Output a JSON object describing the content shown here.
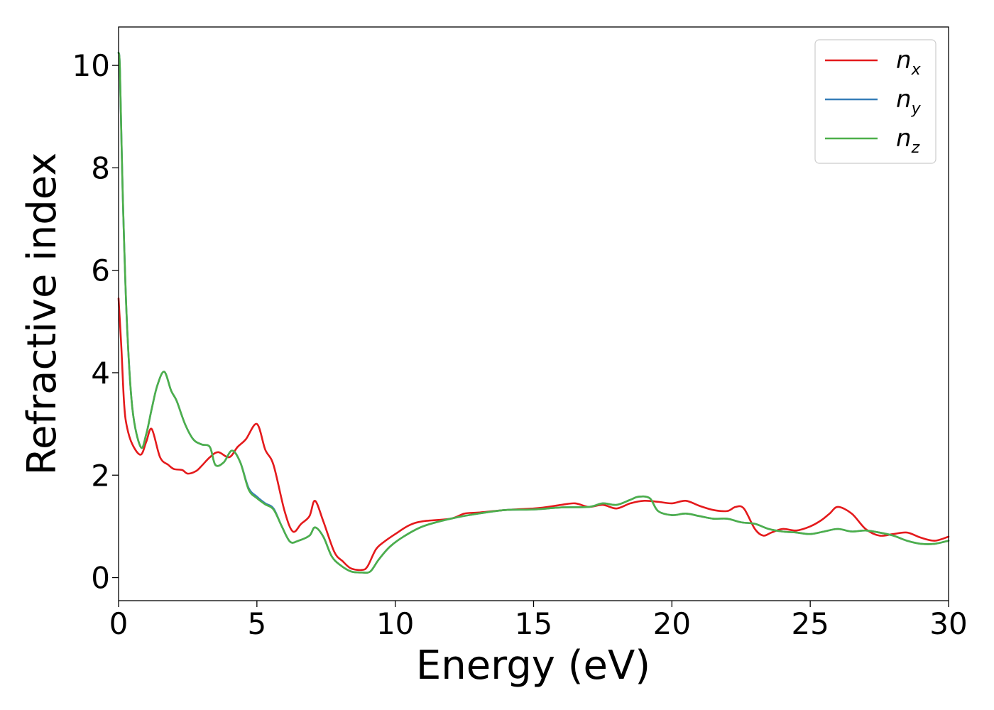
{
  "chart_data": {
    "type": "line",
    "title": "",
    "xlabel": "Energy (eV)",
    "ylabel": "Refractive index",
    "xlim": [
      0,
      30
    ],
    "ylim": [
      -0.45,
      10.75
    ],
    "xticks": [
      0,
      5,
      10,
      15,
      20,
      25,
      30
    ],
    "yticks": [
      0,
      2,
      4,
      6,
      8,
      10
    ],
    "xtick_labels": [
      "0",
      "5",
      "10",
      "15",
      "20",
      "25",
      "30"
    ],
    "ytick_labels": [
      "0",
      "2",
      "4",
      "6",
      "8",
      "10"
    ],
    "grid": false,
    "legend_position": "top-right",
    "series": [
      {
        "name": "n",
        "name_sub": "x",
        "color": "#e41a1c",
        "x": [
          0.0,
          0.1,
          0.2,
          0.3,
          0.5,
          0.8,
          1.0,
          1.2,
          1.5,
          1.8,
          2.0,
          2.3,
          2.5,
          2.8,
          3.0,
          3.3,
          3.6,
          4.0,
          4.3,
          4.6,
          5.0,
          5.3,
          5.6,
          6.0,
          6.3,
          6.6,
          6.9,
          7.1,
          7.4,
          7.8,
          8.1,
          8.4,
          8.8,
          9.0,
          9.3,
          9.6,
          10.0,
          10.5,
          11.0,
          12.0,
          12.5,
          13.0,
          14.0,
          15.0,
          15.5,
          16.0,
          16.5,
          17.0,
          17.5,
          18.0,
          18.5,
          19.0,
          19.5,
          20.0,
          20.5,
          21.0,
          21.5,
          22.0,
          22.3,
          22.6,
          23.0,
          23.3,
          23.6,
          24.0,
          24.5,
          25.0,
          25.4,
          25.7,
          26.0,
          26.5,
          27.0,
          27.5,
          28.0,
          28.5,
          29.0,
          29.5,
          30.0
        ],
        "y": [
          5.45,
          4.5,
          3.4,
          2.95,
          2.6,
          2.4,
          2.65,
          2.9,
          2.35,
          2.2,
          2.12,
          2.1,
          2.03,
          2.08,
          2.18,
          2.35,
          2.45,
          2.35,
          2.55,
          2.7,
          3.0,
          2.5,
          2.2,
          1.3,
          0.9,
          1.05,
          1.2,
          1.5,
          1.1,
          0.5,
          0.32,
          0.18,
          0.15,
          0.22,
          0.55,
          0.7,
          0.85,
          1.02,
          1.1,
          1.15,
          1.25,
          1.27,
          1.32,
          1.35,
          1.38,
          1.42,
          1.45,
          1.38,
          1.42,
          1.35,
          1.45,
          1.5,
          1.48,
          1.45,
          1.5,
          1.4,
          1.32,
          1.3,
          1.38,
          1.35,
          0.95,
          0.82,
          0.88,
          0.95,
          0.92,
          1.0,
          1.12,
          1.25,
          1.38,
          1.25,
          0.95,
          0.82,
          0.85,
          0.88,
          0.78,
          0.72,
          0.8
        ]
      },
      {
        "name": "n",
        "name_sub": "y",
        "color": "#377eb8",
        "x": [
          0.0,
          0.05,
          0.15,
          0.3,
          0.5,
          0.8,
          1.0,
          1.2,
          1.4,
          1.65,
          1.9,
          2.1,
          2.4,
          2.7,
          3.0,
          3.3,
          3.5,
          3.8,
          4.1,
          4.4,
          4.7,
          5.0,
          5.3,
          5.6,
          5.9,
          6.2,
          6.5,
          6.9,
          7.1,
          7.4,
          7.7,
          8.0,
          8.4,
          8.8,
          9.1,
          9.4,
          9.8,
          10.3,
          11.0,
          12.0,
          13.0,
          14.0,
          15.0,
          16.0,
          17.0,
          17.5,
          18.0,
          18.5,
          18.8,
          19.2,
          19.5,
          20.0,
          20.5,
          21.0,
          21.5,
          22.0,
          22.5,
          23.0,
          23.5,
          24.0,
          24.5,
          25.0,
          25.5,
          26.0,
          26.5,
          27.0,
          27.5,
          28.0,
          28.5,
          29.0,
          29.5,
          30.0
        ],
        "y": [
          10.25,
          9.9,
          7.5,
          5.0,
          3.3,
          2.55,
          2.8,
          3.3,
          3.75,
          4.02,
          3.65,
          3.45,
          3.0,
          2.7,
          2.6,
          2.55,
          2.2,
          2.25,
          2.48,
          2.25,
          1.75,
          1.58,
          1.45,
          1.35,
          1.0,
          0.7,
          0.72,
          0.82,
          0.98,
          0.8,
          0.42,
          0.25,
          0.12,
          0.1,
          0.12,
          0.35,
          0.6,
          0.8,
          1.0,
          1.15,
          1.25,
          1.32,
          1.33,
          1.37,
          1.38,
          1.45,
          1.42,
          1.52,
          1.58,
          1.55,
          1.3,
          1.22,
          1.25,
          1.2,
          1.15,
          1.15,
          1.08,
          1.05,
          0.95,
          0.9,
          0.88,
          0.85,
          0.9,
          0.95,
          0.9,
          0.92,
          0.88,
          0.82,
          0.72,
          0.66,
          0.66,
          0.72
        ]
      },
      {
        "name": "n",
        "name_sub": "z",
        "color": "#4daf4a",
        "x": [
          0.0,
          0.05,
          0.15,
          0.3,
          0.5,
          0.8,
          1.0,
          1.2,
          1.4,
          1.65,
          1.9,
          2.1,
          2.4,
          2.7,
          3.0,
          3.3,
          3.5,
          3.8,
          4.1,
          4.4,
          4.7,
          5.0,
          5.3,
          5.6,
          5.9,
          6.2,
          6.5,
          6.9,
          7.1,
          7.4,
          7.7,
          8.0,
          8.4,
          8.8,
          9.1,
          9.4,
          9.8,
          10.3,
          11.0,
          12.0,
          13.0,
          14.0,
          15.0,
          16.0,
          17.0,
          17.5,
          18.0,
          18.5,
          18.8,
          19.2,
          19.5,
          20.0,
          20.5,
          21.0,
          21.5,
          22.0,
          22.5,
          23.0,
          23.5,
          24.0,
          24.5,
          25.0,
          25.5,
          26.0,
          26.5,
          27.0,
          27.5,
          28.0,
          28.5,
          29.0,
          29.5,
          30.0
        ],
        "y": [
          10.25,
          9.9,
          7.5,
          5.0,
          3.3,
          2.55,
          2.8,
          3.3,
          3.75,
          4.02,
          3.65,
          3.45,
          3.0,
          2.7,
          2.6,
          2.55,
          2.2,
          2.25,
          2.48,
          2.25,
          1.72,
          1.55,
          1.43,
          1.33,
          1.0,
          0.7,
          0.72,
          0.82,
          0.98,
          0.8,
          0.42,
          0.25,
          0.12,
          0.1,
          0.12,
          0.35,
          0.6,
          0.8,
          1.0,
          1.15,
          1.25,
          1.32,
          1.33,
          1.37,
          1.38,
          1.45,
          1.42,
          1.52,
          1.58,
          1.55,
          1.3,
          1.22,
          1.25,
          1.2,
          1.15,
          1.15,
          1.08,
          1.05,
          0.95,
          0.9,
          0.88,
          0.85,
          0.9,
          0.95,
          0.9,
          0.92,
          0.88,
          0.82,
          0.72,
          0.66,
          0.66,
          0.72
        ]
      }
    ]
  }
}
